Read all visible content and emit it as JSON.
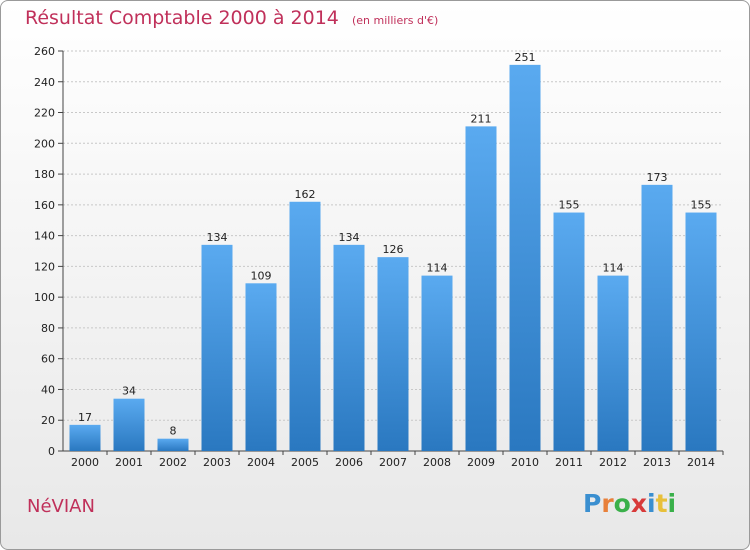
{
  "title": "Résultat Comptable 2000 à 2014",
  "unit_note": "(en milliers d'€)",
  "commune": "NéVIAN",
  "logo": {
    "text": "Proxiti",
    "colors": [
      "#3a8fd0",
      "#e8803a",
      "#3ab04a",
      "#d83a3a",
      "#3a8fd0",
      "#e8c03a",
      "#3ab04a"
    ]
  },
  "chart_data": {
    "type": "bar",
    "categories": [
      "2000",
      "2001",
      "2002",
      "2003",
      "2004",
      "2005",
      "2006",
      "2007",
      "2008",
      "2009",
      "2010",
      "2011",
      "2012",
      "2013",
      "2014"
    ],
    "values": [
      17,
      34,
      8,
      134,
      109,
      162,
      134,
      126,
      114,
      211,
      251,
      155,
      114,
      173,
      155
    ],
    "ylim": [
      0,
      260
    ],
    "yticks": [
      0,
      20,
      40,
      60,
      80,
      100,
      120,
      140,
      160,
      180,
      200,
      220,
      240,
      260
    ],
    "grid": true,
    "bar_color": "#3d8fd6",
    "title": "Résultat Comptable 2000 à 2014",
    "xlabel": "",
    "ylabel": ""
  }
}
